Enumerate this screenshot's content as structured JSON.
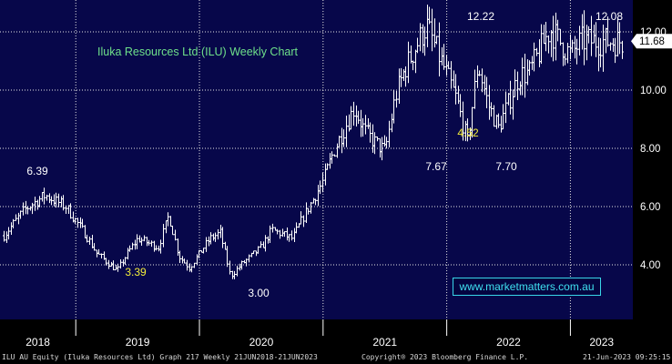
{
  "chart_data": {
    "type": "ohlc-bar",
    "title": "Iluka Resources Ltd (ILU) Weekly Chart",
    "y_ticks": [
      "4.00",
      "6.00",
      "8.00",
      "10.00",
      "12.00"
    ],
    "x_ticks": [
      "2018",
      "2019",
      "2020",
      "2021",
      "2022",
      "2023"
    ],
    "ylim": [
      2.0,
      13.0
    ],
    "grid": true,
    "last_price": "11.68",
    "series_color": "#ffffff",
    "accent_yellow": "#f4ee3a",
    "watermark_color": "#3fe0f0",
    "annotations": [
      {
        "text": "6.39",
        "color": "white",
        "x": "2018-05",
        "y": 6.39
      },
      {
        "text": "3.39",
        "color": "yellow",
        "x": "2018-12",
        "y": 3.39
      },
      {
        "text": "3.00",
        "color": "white",
        "x": "2020-03",
        "y": 3.0
      },
      {
        "text": "7.67",
        "color": "white",
        "x": "2021-09",
        "y": 7.67
      },
      {
        "text": "4.52",
        "color": "yellow",
        "x": "2021-11",
        "y": 7.67
      },
      {
        "text": "7.70",
        "color": "white",
        "x": "2022-06",
        "y": 7.7
      },
      {
        "text": "12.22",
        "color": "white",
        "x": "2022-01",
        "y": 12.22
      },
      {
        "text": "12.08",
        "color": "white",
        "x": "2023-05",
        "y": 12.08
      }
    ],
    "series": [
      {
        "x": "2018-06",
        "y": 5.0
      },
      {
        "x": "2018-08",
        "y": 5.9
      },
      {
        "x": "2018-10",
        "y": 6.39
      },
      {
        "x": "2018-12",
        "y": 6.0
      },
      {
        "x": "2019-02",
        "y": 5.0
      },
      {
        "x": "2019-03",
        "y": 4.4
      },
      {
        "x": "2019-05",
        "y": 3.8
      },
      {
        "x": "2019-06",
        "y": 4.4
      },
      {
        "x": "2019-07",
        "y": 4.9
      },
      {
        "x": "2019-09",
        "y": 4.6
      },
      {
        "x": "2019-10",
        "y": 5.7
      },
      {
        "x": "2019-11",
        "y": 4.3
      },
      {
        "x": "2019-12",
        "y": 3.9
      },
      {
        "x": "2020-02",
        "y": 4.9
      },
      {
        "x": "2020-03",
        "y": 5.1
      },
      {
        "x": "2020-04",
        "y": 3.6
      },
      {
        "x": "2020-05",
        "y": 4.0
      },
      {
        "x": "2020-07",
        "y": 4.6
      },
      {
        "x": "2020-08",
        "y": 5.2
      },
      {
        "x": "2020-10",
        "y": 4.9
      },
      {
        "x": "2020-11",
        "y": 5.6
      },
      {
        "x": "2021-01",
        "y": 6.9
      },
      {
        "x": "2021-02",
        "y": 7.9
      },
      {
        "x": "2021-04",
        "y": 9.4
      },
      {
        "x": "2021-05",
        "y": 8.6
      },
      {
        "x": "2021-06",
        "y": 8.2
      },
      {
        "x": "2021-07",
        "y": 7.9
      },
      {
        "x": "2021-08",
        "y": 9.8
      },
      {
        "x": "2021-09",
        "y": 10.8
      },
      {
        "x": "2021-11",
        "y": 12.22
      },
      {
        "x": "2022-01",
        "y": 10.5
      },
      {
        "x": "2022-02",
        "y": 9.6
      },
      {
        "x": "2022-03",
        "y": 8.2
      },
      {
        "x": "2022-04",
        "y": 10.9
      },
      {
        "x": "2022-05",
        "y": 9.5
      },
      {
        "x": "2022-06",
        "y": 8.7
      },
      {
        "x": "2022-08",
        "y": 10.5
      },
      {
        "x": "2022-09",
        "y": 10.6
      },
      {
        "x": "2022-11",
        "y": 12.08
      },
      {
        "x": "2023-01",
        "y": 11.2
      },
      {
        "x": "2023-02",
        "y": 11.68
      }
    ]
  },
  "watermark": "www.marketmatters.com.au",
  "footer": {
    "left": "ILU AU Equity (Iluka Resources Ltd) Graph 217  Weekly 21JUN2018-21JUN2023",
    "middle": "Copyright® 2023 Bloomberg Finance L.P.",
    "right": "21-Jun-2023 09:25:15"
  }
}
